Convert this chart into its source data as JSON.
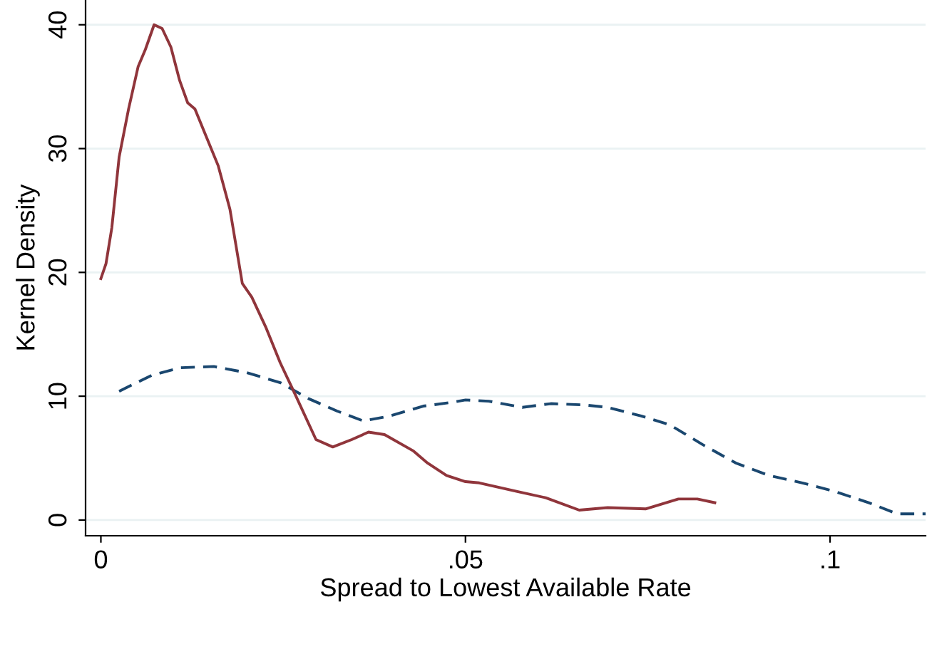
{
  "chart_data": {
    "type": "line",
    "xlabel": "Spread to Lowest Available Rate",
    "ylabel": "Kernel Density",
    "xlim": [
      -0.0021,
      0.1131
    ],
    "ylim": [
      -1.27,
      42
    ],
    "xticks": [
      {
        "value": 0,
        "label": "0"
      },
      {
        "value": 0.05,
        "label": ".05"
      },
      {
        "value": 0.1,
        "label": ".1"
      }
    ],
    "yticks": [
      0,
      10,
      20,
      30,
      40
    ],
    "grid": "y",
    "series": [
      {
        "color": "#1a476f",
        "line_style": "dashed",
        "x": [
          0.0025,
          0.007,
          0.0109,
          0.0155,
          0.02,
          0.0246,
          0.0285,
          0.0324,
          0.036,
          0.0396,
          0.0442,
          0.0481,
          0.05,
          0.0532,
          0.0578,
          0.0617,
          0.0662,
          0.0695,
          0.0741,
          0.078,
          0.0825,
          0.0871,
          0.0916,
          0.0962,
          0.1007,
          0.1053,
          0.1092,
          0.1131
        ],
        "values": [
          10.4,
          11.7,
          12.3,
          12.4,
          11.9,
          11.1,
          9.8,
          8.8,
          8.0,
          8.4,
          9.2,
          9.5,
          9.7,
          9.6,
          9.1,
          9.4,
          9.3,
          9.1,
          8.4,
          7.7,
          6.1,
          4.6,
          3.6,
          3.0,
          2.3,
          1.4,
          0.5,
          0.5
        ]
      },
      {
        "color": "#90353b",
        "line_style": "solid",
        "x": [
          0.0,
          0.0007,
          0.0015,
          0.0025,
          0.0038,
          0.0051,
          0.0061,
          0.0073,
          0.0084,
          0.0096,
          0.0108,
          0.0119,
          0.0129,
          0.0145,
          0.0161,
          0.0177,
          0.0194,
          0.0207,
          0.0226,
          0.0246,
          0.0266,
          0.0295,
          0.0318,
          0.0344,
          0.0367,
          0.0389,
          0.0428,
          0.0448,
          0.0474,
          0.05,
          0.0519,
          0.0571,
          0.061,
          0.0656,
          0.0695,
          0.0747,
          0.0792,
          0.0818,
          0.0842
        ],
        "values": [
          19.5,
          20.7,
          23.6,
          29.3,
          33.2,
          36.6,
          38.0,
          40.0,
          39.7,
          38.2,
          35.5,
          33.7,
          33.2,
          30.9,
          28.6,
          25.1,
          19.1,
          18.0,
          15.6,
          12.7,
          10.2,
          6.5,
          5.9,
          6.5,
          7.1,
          6.9,
          5.6,
          4.6,
          3.6,
          3.1,
          3.0,
          2.3,
          1.8,
          0.8,
          1.0,
          0.9,
          1.7,
          1.7,
          1.4
        ]
      }
    ]
  }
}
